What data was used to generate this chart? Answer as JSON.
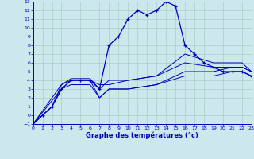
{
  "title": "",
  "xlabel": "Graphe des températures (°c)",
  "background_color": "#cce8ec",
  "line_color": "#0000bb",
  "grid_color": "#aacccc",
  "series": {
    "main": {
      "x": [
        0,
        1,
        2,
        3,
        4,
        5,
        6,
        7,
        8,
        9,
        10,
        11,
        12,
        13,
        14,
        15,
        16,
        17,
        18,
        19,
        20,
        21,
        22,
        23
      ],
      "y": [
        -1,
        0,
        1,
        3,
        4,
        4,
        4,
        3,
        8,
        9,
        11,
        12,
        11.5,
        12,
        13,
        12.5,
        8,
        7,
        6,
        5.5,
        5,
        5,
        5,
        4.5
      ]
    },
    "line2": {
      "x": [
        0,
        1,
        2,
        3,
        4,
        5,
        6,
        7,
        8,
        10,
        13,
        16,
        19,
        21,
        22,
        23
      ],
      "y": [
        -1,
        0,
        1,
        3,
        4,
        4,
        4,
        2,
        3,
        3,
        3.5,
        5,
        5,
        5.5,
        5.5,
        5
      ]
    },
    "line3": {
      "x": [
        0,
        1,
        2,
        3,
        4,
        5,
        6,
        7,
        8,
        10,
        13,
        16,
        19,
        21,
        22,
        23
      ],
      "y": [
        -1,
        0,
        1,
        3.5,
        4.2,
        4.2,
        4.2,
        3,
        4,
        4,
        4.5,
        7,
        6,
        6,
        6,
        5
      ]
    },
    "line4": {
      "x": [
        0,
        3,
        4,
        5,
        6,
        7,
        8,
        10,
        13,
        16,
        19,
        21,
        22,
        23
      ],
      "y": [
        -1,
        3,
        3.5,
        3.5,
        3.5,
        2,
        3,
        3,
        3.5,
        4.5,
        4.5,
        5,
        5,
        4.5
      ]
    },
    "line5": {
      "x": [
        0,
        3,
        4,
        5,
        6,
        7,
        8,
        10,
        13,
        16,
        19,
        21,
        22,
        23
      ],
      "y": [
        -1,
        3.5,
        4,
        4,
        4,
        3.5,
        3.5,
        4,
        4.5,
        6,
        5.5,
        5.5,
        5.5,
        5
      ]
    }
  },
  "xlim": [
    0,
    23
  ],
  "ylim": [
    -1,
    13
  ],
  "xticks": [
    0,
    1,
    2,
    3,
    4,
    5,
    6,
    7,
    8,
    9,
    10,
    11,
    12,
    13,
    14,
    15,
    16,
    17,
    18,
    19,
    20,
    21,
    22,
    23
  ],
  "yticks": [
    -1,
    0,
    1,
    2,
    3,
    4,
    5,
    6,
    7,
    8,
    9,
    10,
    11,
    12,
    13
  ],
  "figsize": [
    3.2,
    2.0
  ],
  "dpi": 100
}
